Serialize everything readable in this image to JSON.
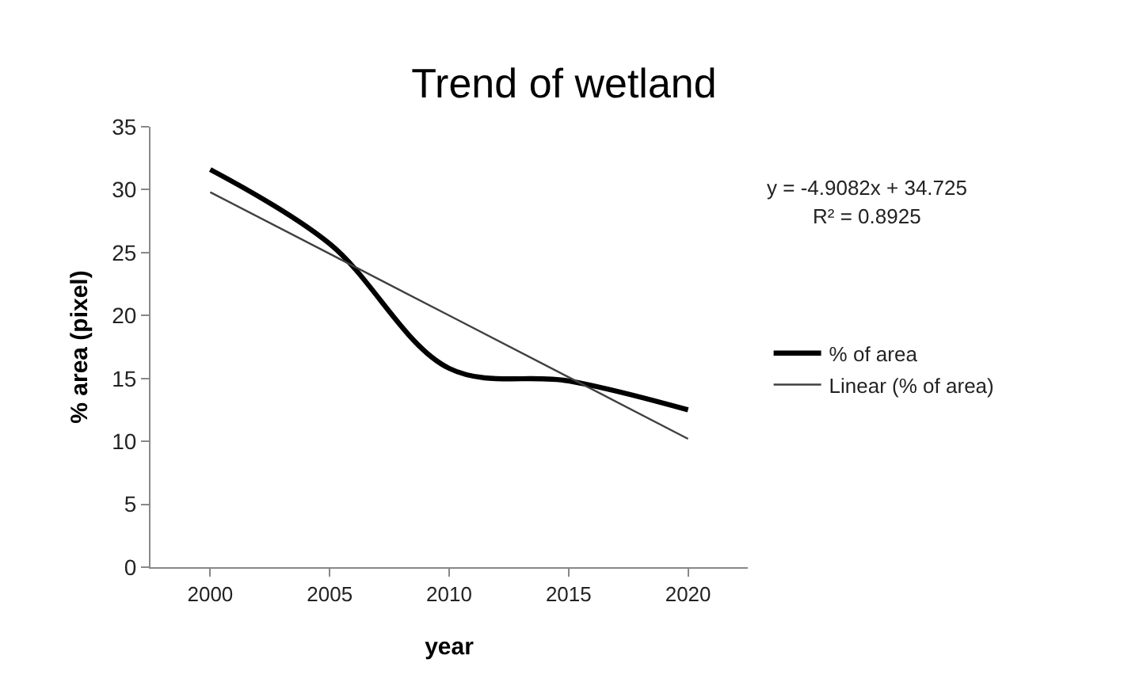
{
  "chart_data": {
    "type": "line",
    "title": "Trend of wetland",
    "xlabel": "year",
    "ylabel": "% area (pixel)",
    "categories": [
      "2000",
      "2005",
      "2010",
      "2015",
      "2020"
    ],
    "series": [
      {
        "name": "% of area",
        "color": "#000000",
        "values": [
          31.6,
          25.7,
          15.8,
          14.8,
          12.5
        ]
      },
      {
        "name": "Linear (% of area)",
        "color": "#404040",
        "values": [
          29.8,
          24.9,
          20.0,
          15.1,
          10.2
        ]
      }
    ],
    "annotations": [
      "y = -4.9082x + 34.725",
      "R² = 0.8925"
    ],
    "ylim": [
      0,
      35
    ],
    "yticks": [
      0,
      5,
      10,
      15,
      20,
      25,
      30,
      35
    ],
    "grid": false,
    "legend": "right",
    "marker": "none"
  }
}
